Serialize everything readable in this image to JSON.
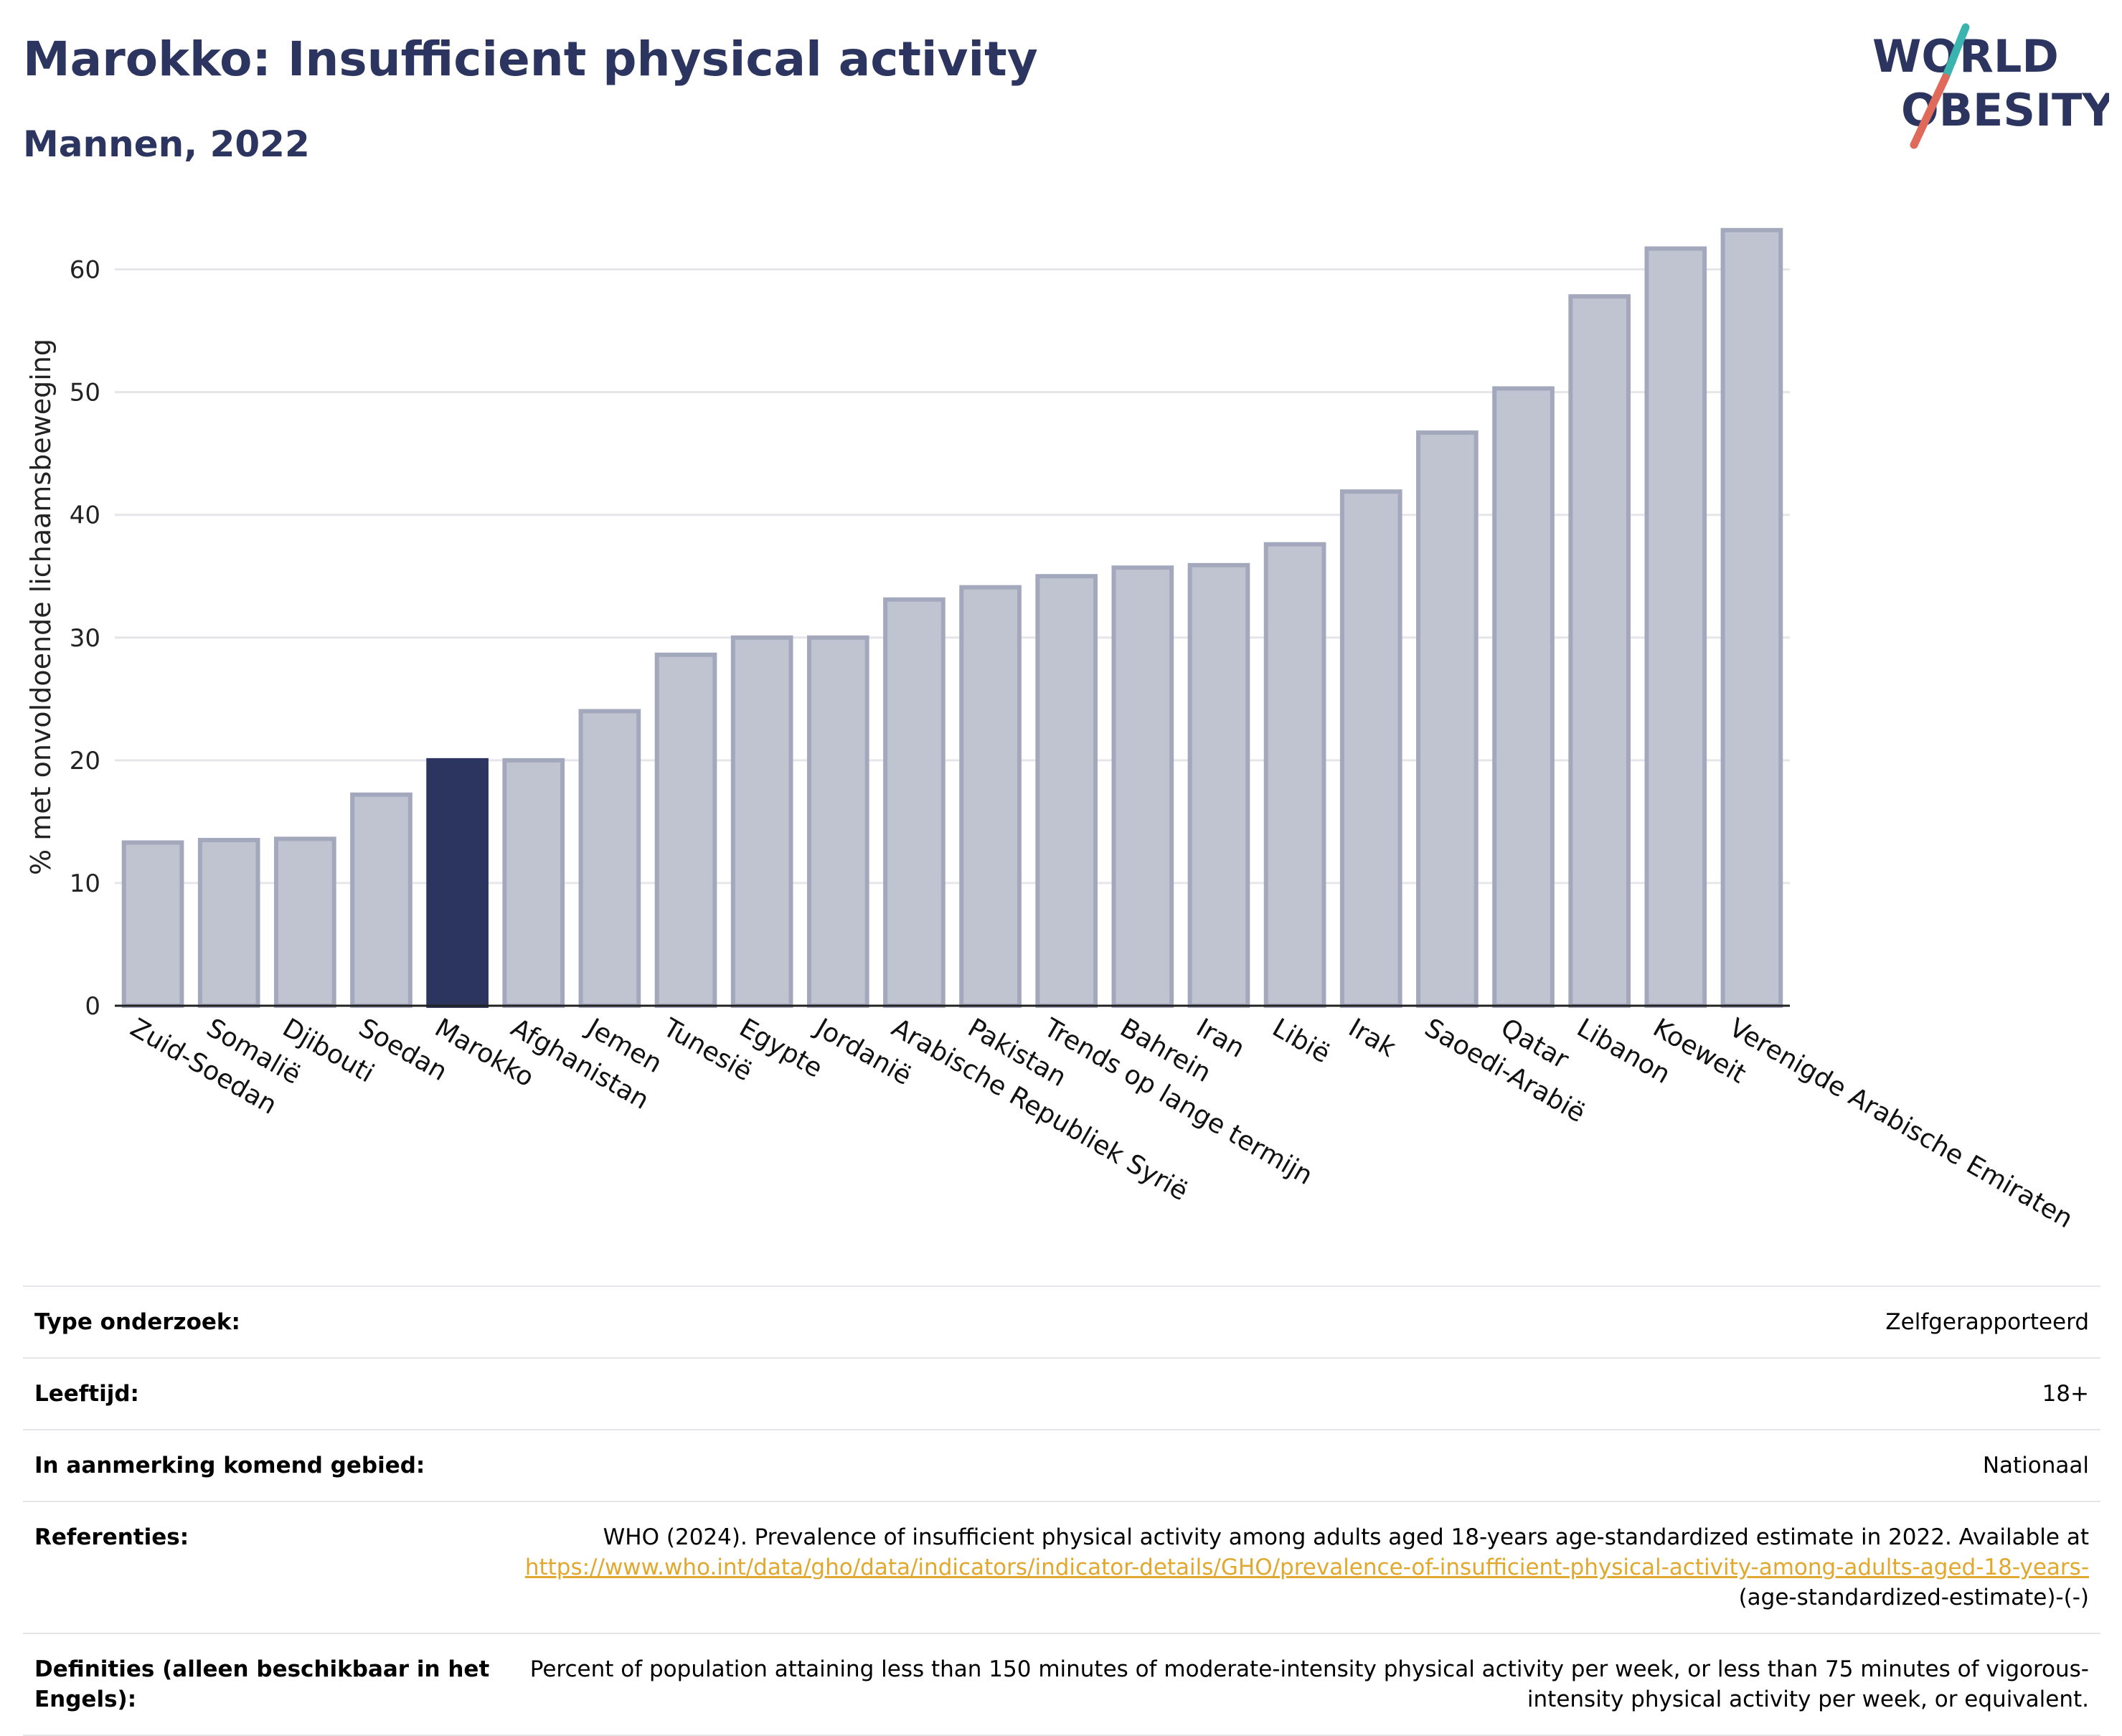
{
  "header": {
    "title": "Marokko: Insufficient physical activity",
    "subtitle": "Mannen, 2022"
  },
  "logo": {
    "line1": "WORLD",
    "line2": "OBESITY"
  },
  "colors": {
    "highlight": "#2b3560",
    "bar": "#c0c3d0",
    "bar_stroke": "#a3a8bc",
    "grid": "#e6e6ea",
    "link": "#e0a82e",
    "logo_teal": "#3bb3ae",
    "logo_red": "#e06a5a"
  },
  "chart_data": {
    "type": "bar",
    "title": "Marokko: Insufficient physical activity",
    "subtitle": "Mannen, 2022",
    "xlabel": "",
    "ylabel": "% met onvoldoende lichaamsbeweging",
    "ylim": [
      0,
      65
    ],
    "yticks": [
      0,
      10,
      20,
      30,
      40,
      50,
      60
    ],
    "grid": true,
    "highlight": "Marokko",
    "categories": [
      "Zuid-Soedan",
      "Somaliё",
      "Djibouti",
      "Soedan",
      "Marokko",
      "Afghanistan",
      "Jemen",
      "Tunesiё",
      "Egypte",
      "Jordaniё",
      "Arabische Republiek Syriё",
      "Pakistan",
      "Trends op lange termijn",
      "Bahrein",
      "Iran",
      "Libiё",
      "Irak",
      "Saoedi-Arabiё",
      "Qatar",
      "Libanon",
      "Koeweit",
      "Verenigde Arabische Emiraten"
    ],
    "values": [
      13.3,
      13.5,
      13.6,
      17.2,
      20.0,
      20.0,
      24.0,
      28.6,
      30.0,
      30.0,
      33.1,
      34.1,
      35.0,
      35.7,
      35.9,
      37.6,
      41.9,
      46.7,
      50.3,
      57.8,
      61.7,
      63.2
    ]
  },
  "meta": {
    "rows": [
      {
        "label": "Type onderzoek:",
        "value": "Zelfgerapporteerd"
      },
      {
        "label": "Leeftijd:",
        "value": "18+"
      },
      {
        "label": "In aanmerking komend gebied:",
        "value": "Nationaal"
      }
    ],
    "references": {
      "label": "Referenties:",
      "text": "WHO (2024). Prevalence of insufficient physical activity among adults aged 18-years age-standardized estimate in 2022. Available at",
      "link": "https://www.who.int/data/gho/data/indicators/indicator-details/GHO/prevalence-of-insufficient-physical-activity-among-adults-aged-18-years-",
      "suffix": "(age-standardized-estimate)-(-)"
    },
    "definitions": {
      "label": "Definities (alleen beschikbaar in het Engels):",
      "value": "Percent of population attaining less than 150 minutes of moderate-intensity physical activity per week, or less than 75 minutes of vigorous-intensity physical activity per week, or equivalent."
    }
  }
}
